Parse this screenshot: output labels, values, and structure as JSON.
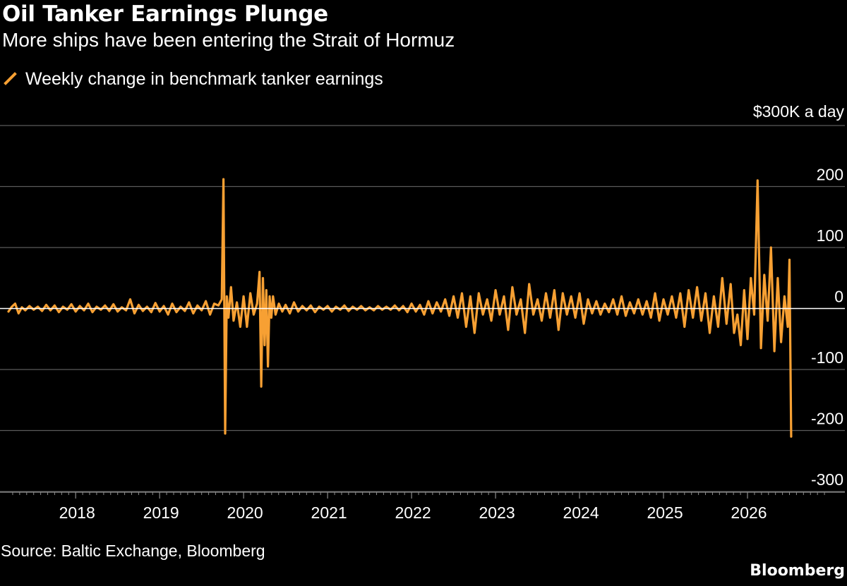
{
  "title": "Oil Tanker Earnings Plunge",
  "subtitle": "More ships have been entering the Strait of Hormuz",
  "legend": [
    {
      "label": "Weekly change in benchmark tanker earnings",
      "color": "#f7a033"
    }
  ],
  "unit_label": "$300K a day",
  "source": "Source: Baltic Exchange, Bloomberg",
  "brand": "Bloomberg",
  "chart_data": {
    "type": "line",
    "title": "Oil Tanker Earnings Plunge",
    "subtitle": "More ships have been entering the Strait of Hormuz",
    "ylabel": "$300K a day",
    "xlim": [
      2017.2,
      2027.0
    ],
    "ylim": [
      -300,
      300
    ],
    "y_ticks": [
      300,
      200,
      100,
      0,
      -100,
      -200,
      -300
    ],
    "y_tick_labels": [
      "$300K a day",
      "200",
      "100",
      "0",
      "-100",
      "-200",
      "-300"
    ],
    "x_ticks": [
      2018,
      2019,
      2020,
      2021,
      2022,
      2023,
      2024,
      2025,
      2026
    ],
    "x_tick_labels": [
      "2018",
      "2019",
      "2020",
      "2021",
      "2022",
      "2023",
      "2024",
      "2025",
      "2026"
    ],
    "grid": "horizontal",
    "series": [
      {
        "name": "Weekly change in benchmark tanker earnings",
        "color": "#f7a033",
        "x": [
          2017.2,
          2017.24,
          2017.28,
          2017.32,
          2017.36,
          2017.4,
          2017.45,
          2017.5,
          2017.55,
          2017.6,
          2017.65,
          2017.7,
          2017.75,
          2017.8,
          2017.85,
          2017.9,
          2017.95,
          2018.0,
          2018.05,
          2018.1,
          2018.15,
          2018.2,
          2018.25,
          2018.3,
          2018.35,
          2018.4,
          2018.45,
          2018.5,
          2018.55,
          2018.6,
          2018.65,
          2018.7,
          2018.75,
          2018.8,
          2018.85,
          2018.9,
          2018.95,
          2019.0,
          2019.05,
          2019.1,
          2019.15,
          2019.2,
          2019.25,
          2019.3,
          2019.35,
          2019.4,
          2019.45,
          2019.5,
          2019.55,
          2019.6,
          2019.65,
          2019.7,
          2019.74,
          2019.76,
          2019.78,
          2019.8,
          2019.82,
          2019.85,
          2019.88,
          2019.92,
          2019.96,
          2020.0,
          2020.04,
          2020.08,
          2020.12,
          2020.16,
          2020.19,
          2020.21,
          2020.23,
          2020.25,
          2020.27,
          2020.29,
          2020.31,
          2020.33,
          2020.35,
          2020.38,
          2020.42,
          2020.46,
          2020.5,
          2020.55,
          2020.6,
          2020.65,
          2020.7,
          2020.75,
          2020.8,
          2020.85,
          2020.9,
          2020.95,
          2021.0,
          2021.05,
          2021.1,
          2021.15,
          2021.2,
          2021.25,
          2021.3,
          2021.35,
          2021.4,
          2021.45,
          2021.5,
          2021.55,
          2021.6,
          2021.65,
          2021.7,
          2021.75,
          2021.8,
          2021.85,
          2021.9,
          2021.95,
          2022.0,
          2022.05,
          2022.1,
          2022.15,
          2022.2,
          2022.25,
          2022.3,
          2022.35,
          2022.4,
          2022.45,
          2022.5,
          2022.55,
          2022.6,
          2022.65,
          2022.7,
          2022.75,
          2022.8,
          2022.85,
          2022.9,
          2022.95,
          2023.0,
          2023.05,
          2023.1,
          2023.15,
          2023.2,
          2023.25,
          2023.3,
          2023.35,
          2023.4,
          2023.45,
          2023.5,
          2023.55,
          2023.6,
          2023.65,
          2023.7,
          2023.75,
          2023.8,
          2023.85,
          2023.9,
          2023.95,
          2024.0,
          2024.05,
          2024.1,
          2024.15,
          2024.2,
          2024.25,
          2024.3,
          2024.35,
          2024.4,
          2024.45,
          2024.5,
          2024.55,
          2024.6,
          2024.65,
          2024.7,
          2024.75,
          2024.8,
          2024.85,
          2024.9,
          2024.95,
          2025.0,
          2025.05,
          2025.1,
          2025.15,
          2025.2,
          2025.25,
          2025.3,
          2025.35,
          2025.4,
          2025.45,
          2025.5,
          2025.55,
          2025.6,
          2025.65,
          2025.7,
          2025.75,
          2025.8,
          2025.84,
          2025.88,
          2025.92,
          2025.96,
          2026.0,
          2026.04,
          2026.08,
          2026.12,
          2026.16,
          2026.2,
          2026.24,
          2026.28,
          2026.32,
          2026.36,
          2026.4,
          2026.44,
          2026.48,
          2026.5,
          2026.52
        ],
        "y": [
          -5,
          3,
          8,
          -8,
          2,
          -3,
          4,
          -2,
          3,
          -4,
          6,
          -3,
          5,
          -6,
          3,
          -2,
          7,
          -5,
          4,
          -3,
          8,
          -6,
          3,
          -2,
          5,
          -4,
          7,
          -5,
          2,
          -3,
          15,
          -8,
          6,
          -4,
          3,
          -6,
          9,
          -5,
          4,
          -10,
          8,
          -6,
          3,
          -4,
          10,
          -8,
          5,
          -3,
          12,
          -10,
          8,
          5,
          15,
          212,
          -205,
          20,
          -15,
          35,
          -20,
          10,
          -30,
          20,
          -30,
          25,
          -10,
          8,
          60,
          -128,
          50,
          -60,
          30,
          -95,
          20,
          -15,
          20,
          -10,
          8,
          -5,
          6,
          -8,
          10,
          -5,
          4,
          -3,
          5,
          -6,
          3,
          -2,
          4,
          -5,
          3,
          -2,
          5,
          -4,
          3,
          -2,
          4,
          -3,
          2,
          -3,
          4,
          -2,
          3,
          -2,
          5,
          -3,
          4,
          -6,
          8,
          -5,
          6,
          -10,
          12,
          -8,
          10,
          -5,
          15,
          -12,
          20,
          -15,
          25,
          -30,
          20,
          -40,
          25,
          -10,
          15,
          -20,
          30,
          -10,
          20,
          -35,
          35,
          -10,
          15,
          -40,
          40,
          -10,
          15,
          -20,
          25,
          -15,
          30,
          -35,
          25,
          -10,
          20,
          -15,
          25,
          -25,
          15,
          -8,
          12,
          -10,
          8,
          -6,
          15,
          -10,
          20,
          -12,
          10,
          -8,
          15,
          -10,
          12,
          -15,
          25,
          -20,
          15,
          -10,
          20,
          -15,
          25,
          -30,
          30,
          -15,
          35,
          -20,
          25,
          -40,
          20,
          -30,
          50,
          -25,
          40,
          -40,
          -10,
          -60,
          30,
          -50,
          50,
          -10,
          210,
          -65,
          55,
          -20,
          100,
          -70,
          50,
          -55,
          20,
          -30,
          80,
          -210
        ]
      }
    ]
  }
}
